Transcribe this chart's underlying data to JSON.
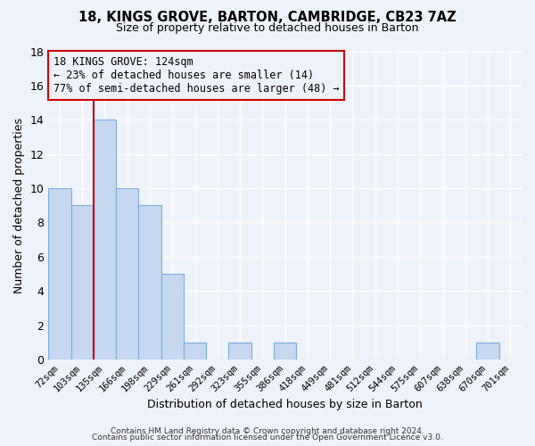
{
  "title1": "18, KINGS GROVE, BARTON, CAMBRIDGE, CB23 7AZ",
  "title2": "Size of property relative to detached houses in Barton",
  "xlabel": "Distribution of detached houses by size in Barton",
  "ylabel": "Number of detached properties",
  "bin_labels": [
    "72sqm",
    "103sqm",
    "135sqm",
    "166sqm",
    "198sqm",
    "229sqm",
    "261sqm",
    "292sqm",
    "323sqm",
    "355sqm",
    "386sqm",
    "418sqm",
    "449sqm",
    "481sqm",
    "512sqm",
    "544sqm",
    "575sqm",
    "607sqm",
    "638sqm",
    "670sqm",
    "701sqm"
  ],
  "bin_counts": [
    10,
    9,
    14,
    10,
    9,
    5,
    1,
    0,
    1,
    0,
    1,
    0,
    0,
    0,
    0,
    0,
    0,
    0,
    0,
    1,
    0
  ],
  "bar_color": "#c5d8f0",
  "bar_edge_color": "#7aafe0",
  "vline_color": "#bb0000",
  "annotation_title": "18 KINGS GROVE: 124sqm",
  "annotation_line1": "← 23% of detached houses are smaller (14)",
  "annotation_line2": "77% of semi-detached houses are larger (48) →",
  "annotation_box_color": "#cc0000",
  "ylim": [
    0,
    18
  ],
  "yticks": [
    0,
    2,
    4,
    6,
    8,
    10,
    12,
    14,
    16,
    18
  ],
  "footer1": "Contains HM Land Registry data © Crown copyright and database right 2024.",
  "footer2": "Contains public sector information licensed under the Open Government Licence v3.0.",
  "background_color": "#eef2fa",
  "grid_color": "#ffffff"
}
